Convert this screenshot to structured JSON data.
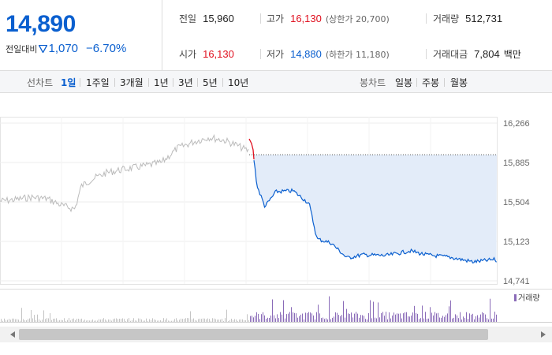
{
  "quote": {
    "price": "14,890",
    "change_label": "전일대비",
    "change_direction_icon": "down-triangle-icon",
    "change_value": "1,070",
    "change_percent": "−6.70%",
    "stats": {
      "prev_close": {
        "label": "전일",
        "value": "15,960"
      },
      "open": {
        "label": "시가",
        "value": "16,130"
      },
      "high": {
        "label": "고가",
        "value": "16,130",
        "extra": "(상한가 20,700)"
      },
      "low": {
        "label": "저가",
        "value": "14,880",
        "extra": "(하한가 11,180)"
      },
      "volume": {
        "label": "거래량",
        "value": "512,731"
      },
      "trade_value": {
        "label": "거래대금",
        "value": "7,804",
        "unit": "백만"
      }
    },
    "colors": {
      "up": "#e0101f",
      "down": "#0a5fcf"
    }
  },
  "toolbar": {
    "line_title": "선차트",
    "line_periods": [
      "1일",
      "1주일",
      "3개월",
      "1년",
      "3년",
      "5년",
      "10년"
    ],
    "active_period": "1일",
    "candle_title": "봉차트",
    "candle_periods": [
      "일봉",
      "주봉",
      "월봉"
    ]
  },
  "chart_data": {
    "type": "line",
    "y_ticks": [
      "16,266",
      "15,885",
      "15,504",
      "15,123",
      "14,741"
    ],
    "ylim": [
      14741,
      16266
    ],
    "prev_close_reference": 15960,
    "volume_legend": "거래량",
    "series_colors": {
      "previous_day": "#bbbbbb",
      "today_up": "#e0101f",
      "today_down": "#0a5fcf",
      "fill": "#e3ecf9",
      "volume": "#8a6bb8"
    }
  },
  "scrollbar": {
    "left_arrow_icon": "triangle-left-icon",
    "right_arrow_icon": "triangle-right-icon"
  }
}
